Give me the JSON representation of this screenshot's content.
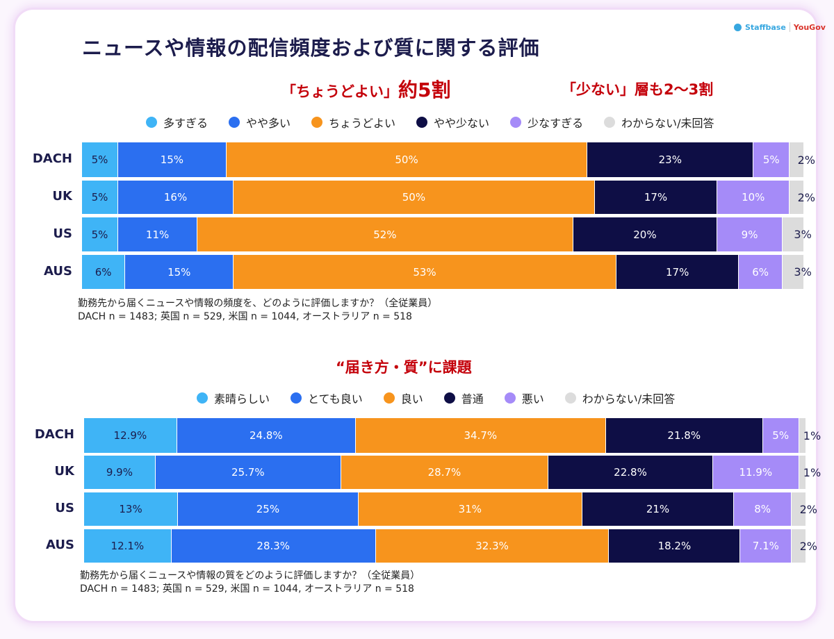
{
  "title": "ニュースや情報の配信頻度および質に関する評価",
  "logo": {
    "brand1": "Staffbase",
    "brand2": "YouGov"
  },
  "colors": [
    "#3fb4f6",
    "#2b6ff0",
    "#f7941d",
    "#0e0e45",
    "#a58bf8",
    "#dcdcdc"
  ],
  "annotations": {
    "a1_prefix": "「ちょうどよい」",
    "a1_big": "約5割",
    "a2": "「少ない」層も2〜3割",
    "a3": "“届き方・質”に課題"
  },
  "chart_data": [
    {
      "type": "bar",
      "orientation": "horizontal-stacked-100",
      "categories": [
        "DACH",
        "UK",
        "US",
        "AUS"
      ],
      "legend": [
        "多すぎる",
        "やや多い",
        "ちょうどよい",
        "やや少ない",
        "少なすぎる",
        "わからない/未回答"
      ],
      "series": [
        {
          "name": "多すぎる",
          "values": [
            5,
            5,
            5,
            6
          ],
          "labels": [
            "5%",
            "5%",
            "5%",
            "6%"
          ]
        },
        {
          "name": "やや多い",
          "values": [
            15,
            16,
            11,
            15
          ],
          "labels": [
            "15%",
            "16%",
            "11%",
            "15%"
          ]
        },
        {
          "name": "ちょうどよい",
          "values": [
            50,
            50,
            52,
            53
          ],
          "labels": [
            "50%",
            "50%",
            "52%",
            "53%"
          ]
        },
        {
          "name": "やや少ない",
          "values": [
            23,
            17,
            20,
            17
          ],
          "labels": [
            "23%",
            "17%",
            "20%",
            "17%"
          ]
        },
        {
          "name": "少なすぎる",
          "values": [
            5,
            10,
            9,
            6
          ],
          "labels": [
            "5%",
            "10%",
            "9%",
            "6%"
          ]
        },
        {
          "name": "わからない/未回答",
          "values": [
            2,
            2,
            3,
            3
          ],
          "labels": [
            "2%",
            "2%",
            "3%",
            "3%"
          ]
        }
      ],
      "note1": "勤務先から届くニュースや情報の頻度を、どのように評価しますか？（全従業員）",
      "note2": "DACH n = 1483; 英国 n = 529, 米国 n = 1044, オーストラリア n = 518"
    },
    {
      "type": "bar",
      "orientation": "horizontal-stacked-100",
      "categories": [
        "DACH",
        "UK",
        "US",
        "AUS"
      ],
      "legend": [
        "素晴らしい",
        "とても良い",
        "良い",
        "普通",
        "悪い",
        "わからない/未回答"
      ],
      "series": [
        {
          "name": "素晴らしい",
          "values": [
            12.9,
            9.9,
            13,
            12.1
          ],
          "labels": [
            "12.9%",
            "9.9%",
            "13%",
            "12.1%"
          ]
        },
        {
          "name": "とても良い",
          "values": [
            24.8,
            25.7,
            25,
            28.3
          ],
          "labels": [
            "24.8%",
            "25.7%",
            "25%",
            "28.3%"
          ]
        },
        {
          "name": "良い",
          "values": [
            34.7,
            28.7,
            31,
            32.3
          ],
          "labels": [
            "34.7%",
            "28.7%",
            "31%",
            "32.3%"
          ]
        },
        {
          "name": "普通",
          "values": [
            21.8,
            22.8,
            21,
            18.2
          ],
          "labels": [
            "21.8%",
            "22.8%",
            "21%",
            "18.2%"
          ]
        },
        {
          "name": "悪い",
          "values": [
            5,
            11.9,
            8,
            7.1
          ],
          "labels": [
            "5%",
            "11.9%",
            "8%",
            "7.1%"
          ]
        },
        {
          "name": "わからない/未回答",
          "values": [
            1,
            1,
            2,
            2
          ],
          "labels": [
            "1%",
            "1%",
            "2%",
            "2%"
          ]
        }
      ],
      "note1": "勤務先から届くニュースや情報の質をどのように評価しますか？（全従業員）",
      "note2": "DACH n = 1483; 英国 n = 529, 米国 n = 1044, オーストラリア n = 518"
    }
  ]
}
